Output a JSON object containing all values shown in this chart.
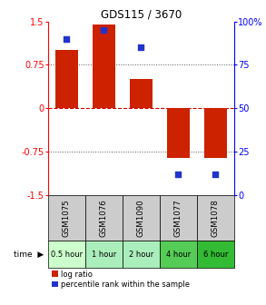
{
  "title": "GDS115 / 3670",
  "samples": [
    "GSM1075",
    "GSM1076",
    "GSM1090",
    "GSM1077",
    "GSM1078"
  ],
  "log_ratios": [
    1.0,
    1.45,
    0.5,
    -0.85,
    -0.85
  ],
  "percentile_ranks": [
    0.9,
    0.95,
    0.85,
    0.12,
    0.12
  ],
  "time_labels": [
    "0.5 hour",
    "1 hour",
    "2 hour",
    "4 hour",
    "6 hour"
  ],
  "time_colors": [
    "#ccffcc",
    "#aaeebb",
    "#aaeebb",
    "#55cc55",
    "#33bb33"
  ],
  "bar_color": "#cc2200",
  "dot_color": "#2233cc",
  "ylim_left": [
    -1.5,
    1.5
  ],
  "ylim_right": [
    0,
    1
  ],
  "yticks_left": [
    -1.5,
    -0.75,
    0,
    0.75,
    1.5
  ],
  "ytick_labels_left": [
    "-1.5",
    "-0.75",
    "0",
    "0.75",
    "1.5"
  ],
  "yticks_right": [
    0,
    0.25,
    0.5,
    0.75,
    1.0
  ],
  "ytick_labels_right": [
    "0",
    "25",
    "50",
    "75",
    "100%"
  ],
  "bg_color": "#ffffff",
  "zero_line_color": "#cc0000",
  "dotted_line_color": "#555555",
  "sample_bg": "#cccccc"
}
